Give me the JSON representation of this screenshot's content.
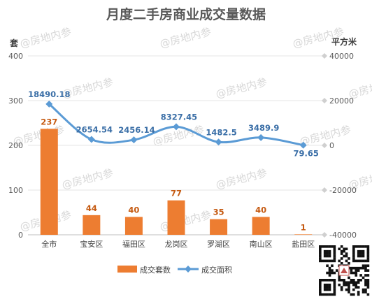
{
  "watermark": "@房地内参",
  "chart_data": {
    "type": "bar",
    "title": "月度二手房商业成交量数据",
    "categories": [
      "全市",
      "宝安区",
      "福田区",
      "龙岗区",
      "罗湖区",
      "南山区",
      "盐田区"
    ],
    "series": [
      {
        "name": "成交套数",
        "type": "bar",
        "axis": "left",
        "values": [
          237,
          44,
          40,
          77,
          35,
          40,
          1
        ],
        "labels": [
          "237",
          "44",
          "40",
          "77",
          "35",
          "40",
          "1"
        ],
        "color": "#ed7d31"
      },
      {
        "name": "成交面积",
        "type": "line",
        "axis": "right",
        "values": [
          18490.18,
          2654.54,
          2456.14,
          8327.45,
          1482.5,
          3489.9,
          79.65
        ],
        "labels": [
          "18490.18",
          "2654.54",
          "2456.14",
          "8327.45",
          "1482.5",
          "3489.9",
          "79.65"
        ],
        "color": "#5b9bd5"
      }
    ],
    "y_left": {
      "unit": "套",
      "ylim": [
        0,
        400
      ],
      "ticks": [
        0,
        100,
        200,
        300,
        400
      ]
    },
    "y_right": {
      "unit": "平方米",
      "ylim": [
        -40000,
        40000
      ],
      "ticks": [
        -40000,
        -20000,
        0,
        20000,
        40000
      ],
      "tick_labels": [
        "-40000",
        "-20000",
        "0",
        "20000",
        "40000"
      ]
    },
    "grid": true,
    "legend": "bottom"
  }
}
